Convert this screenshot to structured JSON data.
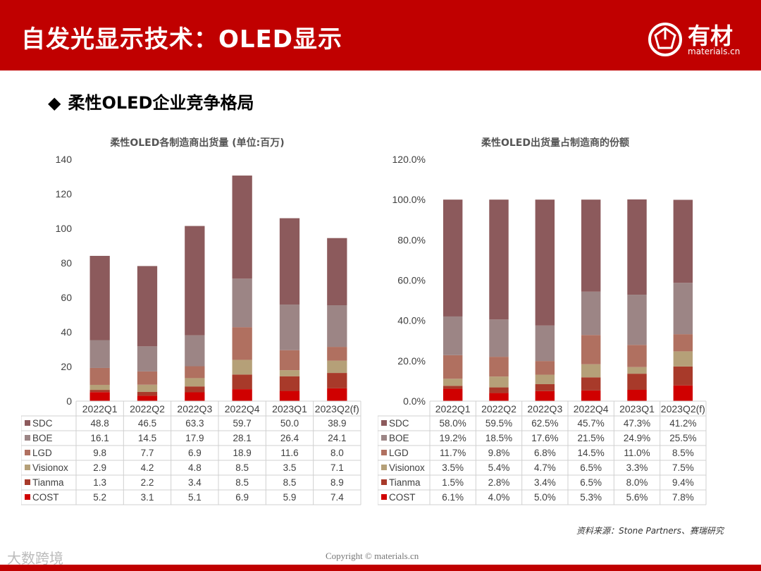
{
  "header": {
    "title": "自发光显示技术：OLED显示",
    "logo_text": "有材",
    "logo_sub": "materials.cn"
  },
  "section": {
    "bullet": "◆",
    "title": "柔性OLED企业竞争格局"
  },
  "colors": {
    "SDC": "#8c5a5c",
    "BOE": "#9c8585",
    "LGD": "#b07060",
    "Visionox": "#b5a078",
    "Tianma": "#a83a2a",
    "COST": "#d00000"
  },
  "chart_data": [
    {
      "type": "bar",
      "stacked": true,
      "title": "柔性OLED各制造商出货量 (单位:百万)",
      "categories": [
        "2022Q1",
        "2022Q2",
        "2022Q3",
        "2022Q4",
        "2023Q1",
        "2023Q2(f)"
      ],
      "ylim": [
        0,
        140
      ],
      "yticks": [
        "0",
        "20",
        "40",
        "60",
        "80",
        "100",
        "120",
        "140"
      ],
      "grid": false,
      "legend": "table-below",
      "series": [
        {
          "name": "COST",
          "values": [
            5.2,
            3.1,
            5.1,
            6.9,
            5.9,
            7.4
          ],
          "labels": [
            "5.2",
            "3.1",
            "5.1",
            "6.9",
            "5.9",
            "7.4"
          ]
        },
        {
          "name": "Tianma",
          "values": [
            1.3,
            2.2,
            3.4,
            8.5,
            8.5,
            8.9
          ],
          "labels": [
            "1.3",
            "2.2",
            "3.4",
            "8.5",
            "8.5",
            "8.9"
          ]
        },
        {
          "name": "Visionox",
          "values": [
            2.9,
            4.2,
            4.8,
            8.5,
            3.5,
            7.1
          ],
          "labels": [
            "2.9",
            "4.2",
            "4.8",
            "8.5",
            "3.5",
            "7.1"
          ]
        },
        {
          "name": "LGD",
          "values": [
            9.8,
            7.7,
            6.9,
            18.9,
            11.6,
            8.0
          ],
          "labels": [
            "9.8",
            "7.7",
            "6.9",
            "18.9",
            "11.6",
            "8.0"
          ]
        },
        {
          "name": "BOE",
          "values": [
            16.1,
            14.5,
            17.9,
            28.1,
            26.4,
            24.1
          ],
          "labels": [
            "16.1",
            "14.5",
            "17.9",
            "28.1",
            "26.4",
            "24.1"
          ]
        },
        {
          "name": "SDC",
          "values": [
            48.8,
            46.5,
            63.3,
            59.7,
            50.0,
            38.9
          ],
          "labels": [
            "48.8",
            "46.5",
            "63.3",
            "59.7",
            "50.0",
            "38.9"
          ]
        }
      ]
    },
    {
      "type": "bar",
      "stacked": true,
      "title": "柔性OLED出货量占制造商的份额",
      "categories": [
        "2022Q1",
        "2022Q2",
        "2022Q3",
        "2022Q4",
        "2023Q1",
        "2023Q2(f)"
      ],
      "ylim": [
        0,
        120
      ],
      "yticks": [
        "0.0%",
        "20.0%",
        "40.0%",
        "60.0%",
        "80.0%",
        "100.0%",
        "120.0%"
      ],
      "grid": false,
      "legend": "table-below",
      "series": [
        {
          "name": "COST",
          "values": [
            6.1,
            4.0,
            5.0,
            5.3,
            5.6,
            7.8
          ],
          "labels": [
            "6.1%",
            "4.0%",
            "5.0%",
            "5.3%",
            "5.6%",
            "7.8%"
          ]
        },
        {
          "name": "Tianma",
          "values": [
            1.5,
            2.8,
            3.4,
            6.5,
            8.0,
            9.4
          ],
          "labels": [
            "1.5%",
            "2.8%",
            "3.4%",
            "6.5%",
            "8.0%",
            "9.4%"
          ]
        },
        {
          "name": "Visionox",
          "values": [
            3.5,
            5.4,
            4.7,
            6.5,
            3.3,
            7.5
          ],
          "labels": [
            "3.5%",
            "5.4%",
            "4.7%",
            "6.5%",
            "3.3%",
            "7.5%"
          ]
        },
        {
          "name": "LGD",
          "values": [
            11.7,
            9.8,
            6.8,
            14.5,
            11.0,
            8.5
          ],
          "labels": [
            "11.7%",
            "9.8%",
            "6.8%",
            "14.5%",
            "11.0%",
            "8.5%"
          ]
        },
        {
          "name": "BOE",
          "values": [
            19.2,
            18.5,
            17.6,
            21.5,
            24.9,
            25.5
          ],
          "labels": [
            "19.2%",
            "18.5%",
            "17.6%",
            "21.5%",
            "24.9%",
            "25.5%"
          ]
        },
        {
          "name": "SDC",
          "values": [
            58.0,
            59.5,
            62.5,
            45.7,
            47.3,
            41.2
          ],
          "labels": [
            "58.0%",
            "59.5%",
            "62.5%",
            "45.7%",
            "47.3%",
            "41.2%"
          ]
        }
      ]
    }
  ],
  "table_order": [
    "SDC",
    "BOE",
    "LGD",
    "Visionox",
    "Tianma",
    "COST"
  ],
  "source": "资料来源：Stone Partners、赛瑞研究",
  "copyright": "Copyright © materials.cn",
  "corner_mark": "大数跨境"
}
